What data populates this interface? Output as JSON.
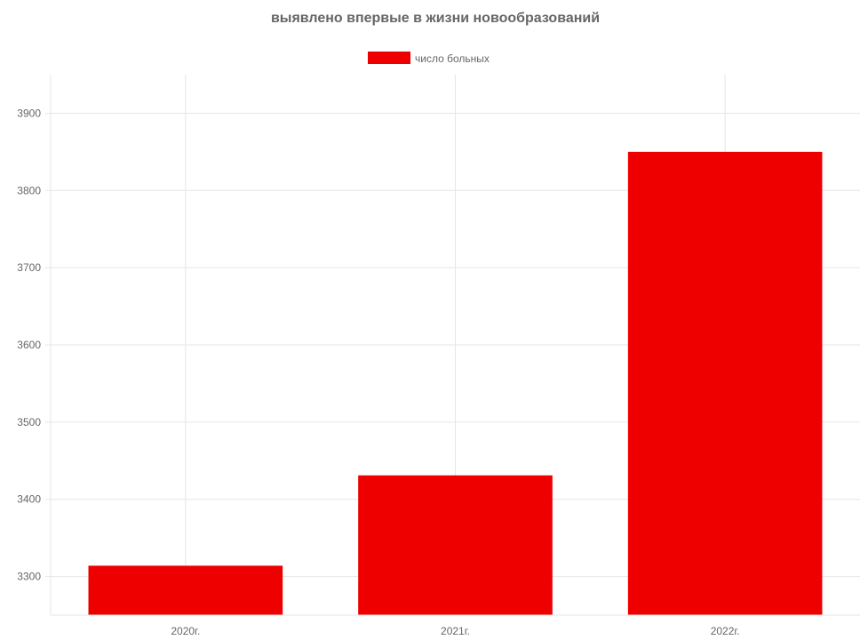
{
  "chart_data": {
    "type": "bar",
    "title": "выявлено впервые в жизни новообразований",
    "categories": [
      "2020г.",
      "2021г.",
      "2022г."
    ],
    "series": [
      {
        "name": "число больных",
        "values": [
          3314,
          3431,
          3850
        ],
        "color": "#ee0000"
      }
    ],
    "ylim": [
      3250,
      3950
    ],
    "yticks": [
      3300,
      3400,
      3500,
      3600,
      3700,
      3800,
      3900
    ],
    "xlabel": "",
    "ylabel": "",
    "grid": true,
    "legend_position": "top-center"
  }
}
